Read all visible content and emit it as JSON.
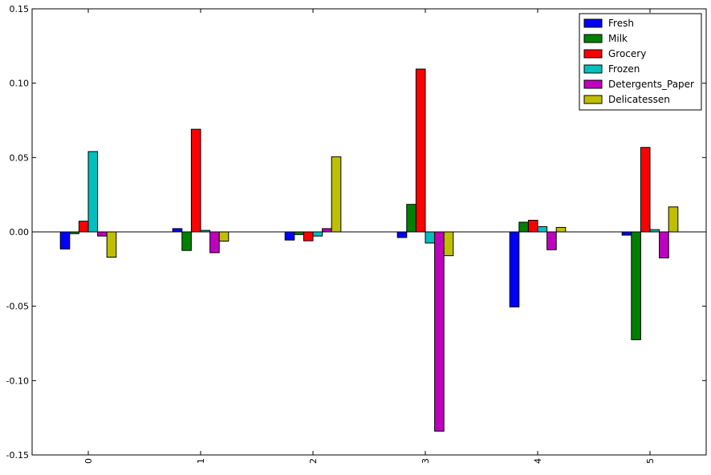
{
  "chart_data": {
    "type": "bar",
    "categories": [
      "0",
      "1",
      "2",
      "3",
      "4",
      "5"
    ],
    "series": [
      {
        "name": "Fresh",
        "color": "#0000ff",
        "values": [
          -0.0115,
          0.0022,
          -0.0055,
          -0.0038,
          -0.0505,
          -0.0022
        ]
      },
      {
        "name": "Milk",
        "color": "#008000",
        "values": [
          -0.0012,
          -0.0125,
          -0.0018,
          0.0185,
          0.0065,
          -0.0725
        ]
      },
      {
        "name": "Grocery",
        "color": "#ff0000",
        "values": [
          0.0072,
          0.069,
          -0.006,
          0.1095,
          0.0078,
          0.0568
        ]
      },
      {
        "name": "Frozen",
        "color": "#00bfbf",
        "values": [
          0.054,
          0.001,
          -0.0028,
          -0.0075,
          0.0035,
          0.0015
        ]
      },
      {
        "name": "Detergents_Paper",
        "color": "#bf00bf",
        "values": [
          -0.0028,
          -0.014,
          0.0022,
          -0.134,
          -0.012,
          -0.0175
        ]
      },
      {
        "name": "Delicatessen",
        "color": "#bfbf00",
        "values": [
          -0.017,
          -0.0062,
          0.0505,
          -0.016,
          0.003,
          0.0168
        ]
      }
    ],
    "ylim": [
      -0.15,
      0.15
    ],
    "yticks": [
      "-0.15",
      "-0.10",
      "-0.05",
      "0.00",
      "0.05",
      "0.10",
      "0.15"
    ],
    "title": "",
    "xlabel": "",
    "ylabel": "",
    "legend_position": "top-right",
    "grid": false
  }
}
